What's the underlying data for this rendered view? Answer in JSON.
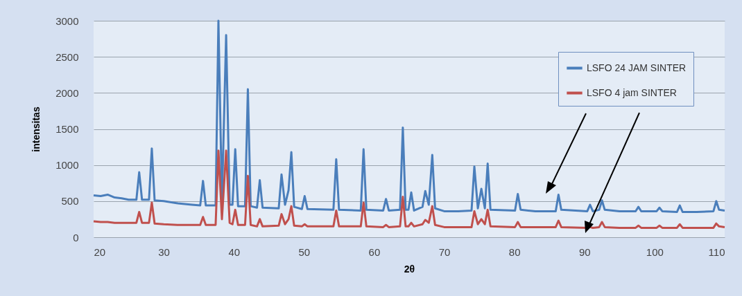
{
  "chart_data": {
    "type": "line",
    "xlabel": "2θ",
    "ylabel": "intensitas",
    "xlim": [
      20,
      110
    ],
    "xticks": [
      20,
      30,
      40,
      50,
      60,
      70,
      80,
      90,
      100,
      110
    ],
    "ylim": [
      0,
      3000
    ],
    "yticks": [
      0,
      500,
      1000,
      1500,
      2000,
      2500,
      3000
    ],
    "grid": "y",
    "legend": "top right",
    "marker": "none",
    "line_style": "solid",
    "x": [
      20,
      21,
      22,
      23,
      24,
      25,
      26.1,
      26.5,
      26.9,
      27.9,
      28.3,
      28.7,
      30,
      32,
      34,
      35.2,
      35.6,
      36,
      37.4,
      37.8,
      38.3,
      38.9,
      39.4,
      39.8,
      40.2,
      40.6,
      41.6,
      42,
      42.4,
      43.3,
      43.7,
      44.1,
      46.4,
      46.8,
      47.3,
      47.8,
      48.2,
      48.6,
      49.7,
      50.1,
      50.5,
      54.2,
      54.6,
      55,
      58.1,
      58.5,
      58.9,
      61.3,
      61.7,
      62.1,
      63.7,
      64.1,
      64.5,
      64.9,
      65.3,
      65.7,
      66.9,
      67.3,
      67.8,
      68.3,
      68.7,
      70,
      72,
      73.9,
      74.3,
      74.8,
      75.3,
      75.8,
      76.2,
      76.6,
      80.1,
      80.5,
      80.9,
      83,
      85.9,
      86.3,
      86.7,
      90.4,
      90.8,
      91.2,
      92.1,
      92.5,
      92.9,
      95,
      97.3,
      97.7,
      98.1,
      100.3,
      100.7,
      101.1,
      103.2,
      103.6,
      104,
      106,
      108.4,
      108.8,
      109.2,
      110
    ],
    "series": [
      {
        "name": "LSFO 24 JAM SINTER",
        "color": "#4a7ebb",
        "values": [
          580,
          570,
          590,
          550,
          540,
          520,
          520,
          900,
          520,
          520,
          1230,
          510,
          500,
          470,
          450,
          440,
          780,
          440,
          440,
          3000,
          500,
          2800,
          450,
          450,
          1220,
          430,
          430,
          2050,
          430,
          410,
          790,
          410,
          400,
          870,
          450,
          650,
          1180,
          420,
          390,
          570,
          390,
          380,
          1080,
          380,
          370,
          1220,
          380,
          370,
          530,
          370,
          380,
          1520,
          380,
          380,
          620,
          370,
          420,
          640,
          450,
          1140,
          400,
          360,
          360,
          370,
          980,
          400,
          670,
          400,
          1020,
          380,
          370,
          600,
          380,
          360,
          360,
          590,
          380,
          360,
          450,
          360,
          380,
          510,
          380,
          360,
          360,
          420,
          360,
          360,
          410,
          360,
          350,
          440,
          350,
          350,
          360,
          500,
          380,
          370
        ]
      },
      {
        "name": "LSFO 4 jam SINTER",
        "color": "#c0504d",
        "values": [
          220,
          210,
          210,
          200,
          200,
          200,
          200,
          350,
          200,
          200,
          480,
          190,
          180,
          170,
          170,
          170,
          280,
          170,
          170,
          1200,
          250,
          1200,
          200,
          180,
          380,
          170,
          170,
          850,
          170,
          150,
          250,
          150,
          160,
          320,
          180,
          250,
          430,
          160,
          150,
          180,
          150,
          150,
          370,
          150,
          150,
          480,
          150,
          140,
          170,
          140,
          150,
          560,
          150,
          150,
          200,
          150,
          180,
          240,
          200,
          430,
          170,
          140,
          140,
          140,
          360,
          180,
          250,
          180,
          380,
          150,
          140,
          210,
          140,
          140,
          140,
          230,
          140,
          130,
          140,
          130,
          140,
          210,
          140,
          130,
          130,
          160,
          130,
          130,
          160,
          130,
          130,
          180,
          130,
          130,
          130,
          190,
          150,
          140
        ]
      }
    ]
  }
}
